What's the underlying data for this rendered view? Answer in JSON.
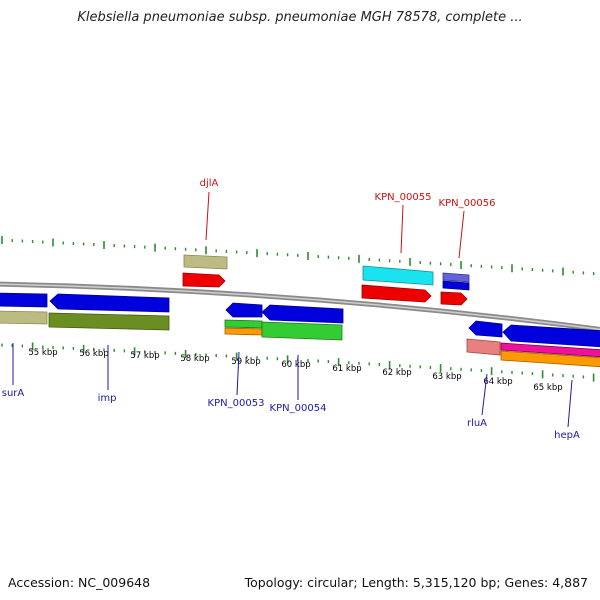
{
  "title": "Klebsiella pneumoniae subsp. pneumoniae MGH 78578, complete ...",
  "accession_label": "Accession: NC_009648",
  "summary_label": "Topology: circular; Length: 5,315,120 bp; Genes: 4,887",
  "colors": {
    "backbone": "#8a8a8a",
    "tick": "#2e8b2e",
    "scale_label": "#000000",
    "gene_label_blue": "#1a1aa8",
    "gene_label_red": "#cc1111"
  },
  "scale_labels": [
    "55 kbp",
    "56 kbp",
    "57 kbp",
    "58 kbp",
    "59 kbp",
    "60 kbp",
    "61 kbp",
    "62 kbp",
    "63 kbp",
    "64 kbp",
    "65 kbp"
  ],
  "genes_top": [
    {
      "name": "djlA",
      "color": "#cc1111"
    },
    {
      "name": "KPN_00055",
      "color": "#cc1111"
    },
    {
      "name": "KPN_00056",
      "color": "#cc1111"
    }
  ],
  "genes_bottom": [
    {
      "name": "surA",
      "color": "#1a1aa8"
    },
    {
      "name": "imp",
      "color": "#1a1aa8"
    },
    {
      "name": "KPN_00053",
      "color": "#1a1aa8"
    },
    {
      "name": "KPN_00054",
      "color": "#1a1aa8"
    },
    {
      "name": "rluA",
      "color": "#1a1aa8"
    },
    {
      "name": "hepA",
      "color": "#1a1aa8"
    }
  ]
}
